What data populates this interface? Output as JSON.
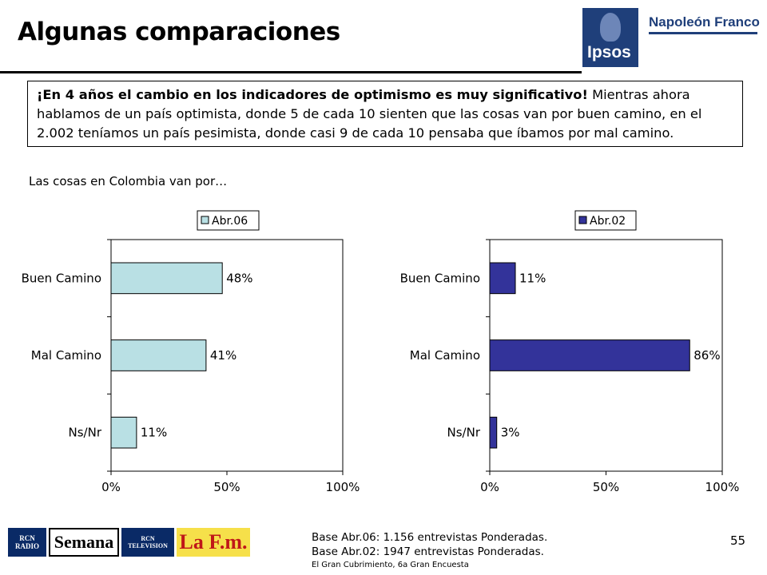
{
  "header": {
    "title": "Algunas comparaciones",
    "brand_logo_text": "Ipsos",
    "brand_partner": "Napoleón Franco"
  },
  "message": {
    "bold": "¡En 4 años el cambio en los indicadores de optimismo es muy significativo!",
    "rest": " Mientras ahora hablamos de un país optimista, donde 5 de cada 10 sienten que las cosas van por buen camino, en el 2.002 teníamos un país pesimista, donde casi 9 de cada 10 pensaba que íbamos por mal camino."
  },
  "subtitle": "Las cosas en Colombia van por…",
  "chart_data": [
    {
      "type": "bar",
      "orientation": "horizontal",
      "categories": [
        "Buen Camino",
        "Mal Camino",
        "Ns/Nr"
      ],
      "series": [
        {
          "name": "Abr.06",
          "values": [
            48,
            41,
            11
          ],
          "labels": [
            "48%",
            "41%",
            "11%"
          ]
        }
      ],
      "xlim": [
        0,
        100
      ],
      "xticks": [
        "0%",
        "50%",
        "100%"
      ],
      "color": "#b9e0e4",
      "legend_position": "top-right"
    },
    {
      "type": "bar",
      "orientation": "horizontal",
      "categories": [
        "Buen Camino",
        "Mal Camino",
        "Ns/Nr"
      ],
      "series": [
        {
          "name": "Abr.02",
          "values": [
            11,
            86,
            3
          ],
          "labels": [
            "11%",
            "86%",
            "3%"
          ]
        }
      ],
      "xlim": [
        0,
        100
      ],
      "xticks": [
        "0%",
        "50%",
        "100%"
      ],
      "color": "#33339a",
      "legend_position": "top-right"
    }
  ],
  "footer": {
    "base_line1": "Base Abr.06: 1.156 entrevistas Ponderadas.",
    "base_line2": "Base Abr.02: 1947 entrevistas Ponderadas.",
    "page_number": "55",
    "source": "El Gran Cubrimiento, 6a Gran Encuesta",
    "media_logos": {
      "rcn_radio_top": "RCN",
      "rcn_radio_bottom": "RADIO",
      "semana": "Semana",
      "rcn_tv_top": "RCN",
      "rcn_tv_bottom": "TELEVISION",
      "lafm": "La F.m."
    }
  }
}
